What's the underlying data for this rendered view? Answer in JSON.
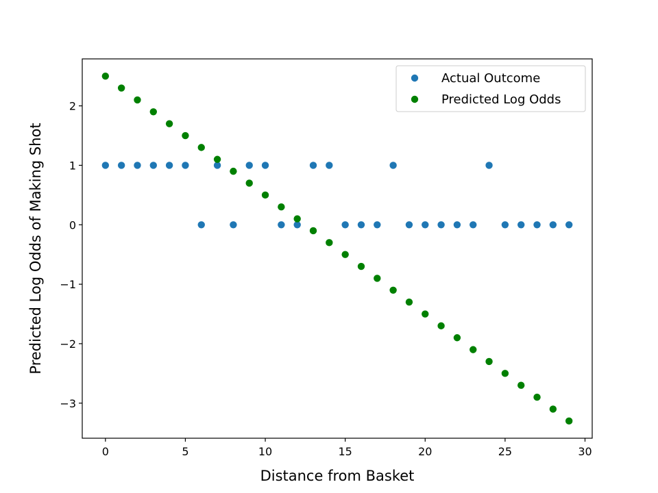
{
  "chart_data": {
    "type": "scatter",
    "title": "",
    "xlabel": "Distance from Basket",
    "ylabel": "Predicted Log Odds of Making Shot",
    "xlim": [
      -1.45,
      30.45
    ],
    "ylim": [
      -3.59,
      2.79
    ],
    "xticks": [
      0,
      5,
      10,
      15,
      20,
      25,
      30
    ],
    "yticks": [
      -3,
      -2,
      -1,
      0,
      1,
      2
    ],
    "grid": false,
    "legend_position": "top-right",
    "series": [
      {
        "name": "Actual Outcome",
        "color": "#1f77b4",
        "x": [
          0,
          1,
          2,
          3,
          4,
          5,
          6,
          7,
          8,
          9,
          10,
          11,
          12,
          13,
          14,
          15,
          16,
          17,
          18,
          19,
          20,
          21,
          22,
          23,
          24,
          25,
          26,
          27,
          28,
          29
        ],
        "y": [
          1,
          1,
          1,
          1,
          1,
          1,
          0,
          1,
          0,
          1,
          1,
          0,
          0,
          1,
          1,
          0,
          0,
          0,
          1,
          0,
          0,
          0,
          0,
          0,
          1,
          0,
          0,
          0,
          0,
          0
        ]
      },
      {
        "name": "Predicted Log Odds",
        "color": "#008000",
        "x": [
          0,
          1,
          2,
          3,
          4,
          5,
          6,
          7,
          8,
          9,
          10,
          11,
          12,
          13,
          14,
          15,
          16,
          17,
          18,
          19,
          20,
          21,
          22,
          23,
          24,
          25,
          26,
          27,
          28,
          29
        ],
        "y": [
          2.5,
          2.3,
          2.1,
          1.9,
          1.7,
          1.5,
          1.3,
          1.1,
          0.9,
          0.7,
          0.5,
          0.3,
          0.1,
          -0.1,
          -0.3,
          -0.5,
          -0.7,
          -0.9,
          -1.1,
          -1.3,
          -1.5,
          -1.7,
          -1.9,
          -2.1,
          -2.3,
          -2.5,
          -2.7,
          -2.9,
          -3.1,
          -3.3
        ]
      }
    ]
  }
}
